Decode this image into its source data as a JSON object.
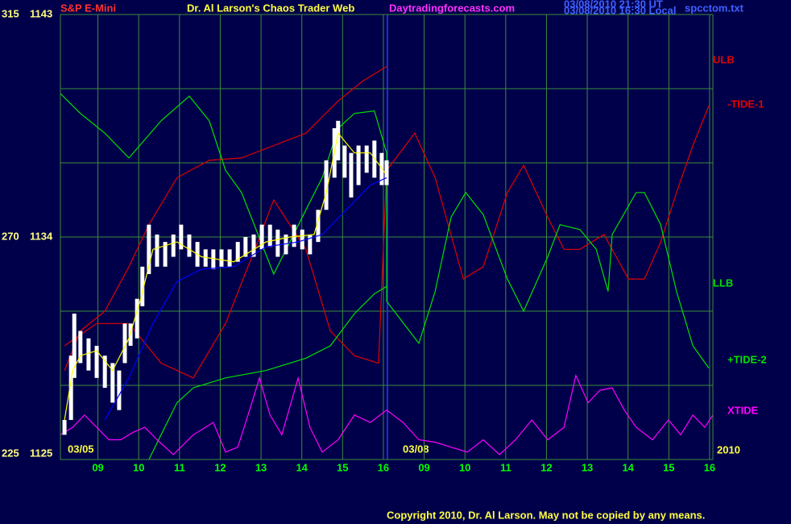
{
  "chart_data": {
    "type": "line",
    "symbol": "S&P E-Mini",
    "title": "Dr. Al Larson's Chaos Trader Web",
    "site": "Daytradingforecasts.com",
    "timestamps": [
      "03/08/2010 21:30 UT",
      "03/08/2010 16:30 Local"
    ],
    "file": "spcctom.txt",
    "annotations": [
      "03/05",
      "03/08",
      "2010"
    ],
    "copyright": "Copyright 2010, Dr. Al Larson. May not be copied by any means.",
    "xlim": [
      0.08,
      16.08
    ],
    "xticks": [
      {
        "value": 1,
        "label": "09"
      },
      {
        "value": 2,
        "label": "10"
      },
      {
        "value": 3,
        "label": "11"
      },
      {
        "value": 4,
        "label": "12"
      },
      {
        "value": 5,
        "label": "13"
      },
      {
        "value": 6,
        "label": "14"
      },
      {
        "value": 7,
        "label": "15"
      },
      {
        "value": 8,
        "label": "16"
      },
      {
        "value": 9,
        "label": "09"
      },
      {
        "value": 10,
        "label": "10"
      },
      {
        "value": 11,
        "label": "11"
      },
      {
        "value": 12,
        "label": "12"
      },
      {
        "value": 13,
        "label": "13"
      },
      {
        "value": 14,
        "label": "14"
      },
      {
        "value": 15,
        "label": "15"
      },
      {
        "value": 16,
        "label": "16"
      }
    ],
    "ylim": [
      1125,
      1143
    ],
    "yticks": [
      1125,
      1134,
      1143
    ],
    "ygrid": [
      1128,
      1131,
      1137,
      1140
    ],
    "y2lim": [
      225,
      315
    ],
    "y2ticks": [
      225,
      270,
      315
    ],
    "grid": true,
    "bars": {
      "color": "#ffffff",
      "x": [
        0.18,
        0.34,
        0.42,
        0.57,
        0.77,
        0.97,
        1.17,
        1.36,
        1.52,
        1.66,
        1.8,
        1.96,
        2.09,
        2.25,
        2.45,
        2.65,
        2.85,
        3.04,
        3.24,
        3.44,
        3.64,
        3.83,
        4.03,
        4.23,
        4.43,
        4.62,
        4.82,
        5.02,
        5.22,
        5.41,
        5.61,
        5.81,
        6.01,
        6.2,
        6.4,
        6.6,
        6.8,
        6.89,
        7.05,
        7.21,
        7.39,
        7.59,
        7.78,
        7.96,
        8.08
      ],
      "high": [
        1126.6,
        1129.2,
        1130.9,
        1130.2,
        1129.9,
        1129.6,
        1129.2,
        1128.9,
        1128.6,
        1130.5,
        1130.5,
        1131.5,
        1132.8,
        1134.5,
        1134.1,
        1133.8,
        1134.1,
        1134.5,
        1134.1,
        1133.8,
        1133.5,
        1133.5,
        1133.5,
        1133.5,
        1133.8,
        1134.0,
        1134.1,
        1134.5,
        1134.5,
        1134.3,
        1134.1,
        1134.5,
        1134.3,
        1134.1,
        1135.1,
        1137.1,
        1138.4,
        1138.7,
        1137.7,
        1137.4,
        1137.7,
        1137.7,
        1137.9,
        1137.4,
        1137.1
      ],
      "low": [
        1126.0,
        1126.6,
        1128.3,
        1128.9,
        1128.6,
        1128.3,
        1127.9,
        1127.3,
        1127.0,
        1128.9,
        1129.6,
        1129.9,
        1131.2,
        1132.5,
        1132.8,
        1132.8,
        1133.2,
        1133.5,
        1133.2,
        1132.8,
        1132.8,
        1132.7,
        1132.8,
        1132.8,
        1133.0,
        1133.2,
        1133.2,
        1133.5,
        1133.6,
        1133.2,
        1133.3,
        1133.6,
        1133.5,
        1133.3,
        1133.8,
        1135.1,
        1136.4,
        1137.1,
        1136.4,
        1135.6,
        1136.1,
        1136.6,
        1136.4,
        1136.1,
        1136.1
      ]
    },
    "series": [
      {
        "name": "ULB",
        "color": "#e00000",
        "x": [
          0.18,
          0.57,
          1.17,
          1.76,
          2.25,
          2.94,
          3.73,
          4.52,
          5.31,
          6.1,
          6.89,
          7.49,
          8.08
        ],
        "values": [
          1128.6,
          1130.2,
          1131.0,
          1132.8,
          1134.5,
          1136.4,
          1137.1,
          1137.2,
          1137.7,
          1138.2,
          1139.5,
          1140.3,
          1140.9
        ]
      },
      {
        "name": "-TIDE-1",
        "color": "#e00000",
        "x": [
          0.18,
          0.97,
          1.76,
          2.55,
          3.34,
          4.13,
          4.92,
          5.31,
          6.1,
          6.7,
          7.29,
          7.88,
          8.08,
          8.77,
          9.27,
          9.96,
          10.45,
          11.04,
          11.44,
          12.03,
          12.43,
          12.82,
          13.41,
          14.01,
          14.4,
          14.8,
          15.19,
          15.59,
          15.98
        ],
        "values": [
          1129.6,
          1130.5,
          1130.5,
          1128.9,
          1128.3,
          1130.5,
          1133.8,
          1135.5,
          1133.5,
          1130.2,
          1129.2,
          1128.9,
          1136.7,
          1138.2,
          1136.4,
          1132.3,
          1132.8,
          1135.8,
          1136.9,
          1134.8,
          1133.5,
          1133.5,
          1134.1,
          1132.3,
          1132.3,
          1133.8,
          1135.8,
          1137.7,
          1139.3
        ]
      },
      {
        "name": "LLB",
        "color": "#00e000",
        "x": [
          2.25,
          2.55,
          2.94,
          3.34,
          4.13,
          5.12,
          6.1,
          6.7,
          7.29,
          7.78,
          8.08
        ],
        "values": [
          1125.0,
          1126.0,
          1127.3,
          1127.9,
          1128.3,
          1128.6,
          1129.1,
          1129.6,
          1130.9,
          1131.7,
          1132.0
        ]
      },
      {
        "name": "+TIDE-2",
        "color": "#00e000",
        "x": [
          0.08,
          0.57,
          1.17,
          1.76,
          2.55,
          3.24,
          3.73,
          4.13,
          4.52,
          5.31,
          6.1,
          6.5,
          6.89,
          7.29,
          7.78,
          8.08,
          8.08,
          8.87,
          9.27,
          9.66,
          10.02,
          10.45,
          11.04,
          11.44,
          12.03,
          12.33,
          12.82,
          13.22,
          13.51,
          13.61,
          14.2,
          14.4,
          14.8,
          15.19,
          15.59,
          15.98
        ],
        "values": [
          1139.8,
          1139.0,
          1138.2,
          1137.2,
          1138.7,
          1139.7,
          1138.7,
          1136.7,
          1135.8,
          1132.5,
          1135.1,
          1136.4,
          1138.4,
          1139.0,
          1139.1,
          1137.4,
          1131.4,
          1129.7,
          1131.8,
          1134.8,
          1135.8,
          1134.9,
          1132.3,
          1131.0,
          1133.2,
          1134.5,
          1134.3,
          1133.5,
          1131.8,
          1134.1,
          1135.8,
          1135.8,
          1134.5,
          1131.8,
          1129.6,
          1128.7
        ]
      },
      {
        "name": "XTIDE",
        "color": "#ff00ff",
        "x": [
          0.08,
          0.38,
          0.67,
          0.97,
          1.27,
          1.56,
          1.86,
          2.15,
          2.45,
          2.85,
          3.34,
          3.83,
          4.13,
          4.43,
          4.72,
          4.96,
          5.22,
          5.51,
          5.91,
          6.2,
          6.5,
          6.89,
          7.29,
          7.68,
          8.08,
          8.48,
          8.87,
          9.27,
          9.66,
          10.06,
          10.45,
          10.85,
          11.24,
          11.64,
          12.03,
          12.43,
          12.72,
          13.02,
          13.31,
          13.61,
          13.91,
          14.2,
          14.6,
          14.99,
          15.29,
          15.59,
          15.88,
          16.08
        ],
        "values": [
          1126.0,
          1126.3,
          1126.8,
          1126.3,
          1125.8,
          1125.8,
          1126.1,
          1126.3,
          1125.8,
          1125.2,
          1126.0,
          1126.5,
          1125.3,
          1125.5,
          1127.0,
          1128.3,
          1126.8,
          1126.0,
          1128.3,
          1126.3,
          1125.3,
          1125.8,
          1126.8,
          1126.5,
          1127.0,
          1126.5,
          1125.8,
          1125.7,
          1125.5,
          1125.3,
          1125.8,
          1125.2,
          1125.8,
          1126.6,
          1125.8,
          1126.3,
          1128.4,
          1127.3,
          1127.8,
          1127.9,
          1127.0,
          1126.3,
          1125.8,
          1126.6,
          1126.0,
          1126.8,
          1126.3,
          1126.8
        ]
      },
      {
        "color": "#0000ff",
        "x": [
          1.17,
          1.76,
          2.35,
          2.94,
          3.54,
          4.33,
          5.12,
          5.91,
          6.5,
          7.09,
          7.68,
          8.08
        ],
        "values": [
          1126.6,
          1128.3,
          1130.5,
          1132.2,
          1132.7,
          1132.8,
          1133.6,
          1133.8,
          1134.1,
          1135.1,
          1136.1,
          1136.4
        ]
      },
      {
        "color": "#ffff00",
        "x": [
          0.18,
          0.38,
          0.57,
          0.97,
          1.36,
          1.76,
          2.05,
          2.35,
          2.94,
          3.54,
          4.33,
          5.12,
          5.71,
          6.3,
          6.6,
          6.89,
          7.29,
          7.68,
          8.04
        ],
        "values": [
          1126.6,
          1128.6,
          1129.2,
          1129.4,
          1128.6,
          1129.9,
          1131.5,
          1133.5,
          1133.8,
          1133.2,
          1133.0,
          1133.8,
          1134.0,
          1134.1,
          1135.8,
          1138.2,
          1137.4,
          1137.4,
          1136.6
        ]
      }
    ]
  }
}
